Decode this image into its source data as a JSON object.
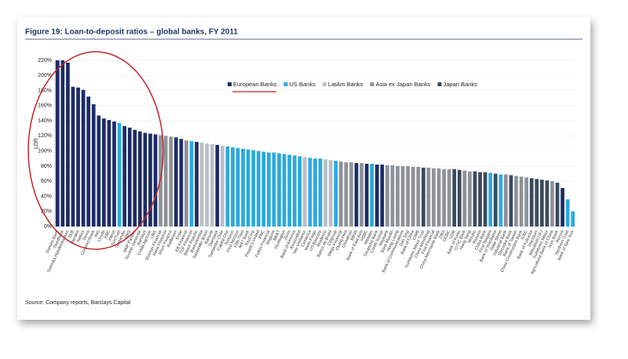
{
  "chart_data": {
    "type": "bar",
    "title": "Figure 19: Loan-to-deposit ratios – global banks, FY 2011",
    "source": "Source: Company reports, Barclays Capital",
    "y_label": "LDR",
    "groups": [
      {
        "name": "European Banks",
        "color": "#1d2c66"
      },
      {
        "name": "US Banks",
        "color": "#2aa9df"
      },
      {
        "name": "LatAm Banks",
        "color": "#b9bfc5"
      },
      {
        "name": "Asia ex Japan Banks",
        "color": "#8d9297"
      },
      {
        "name": "Japan Banks",
        "color": "#3b4a5c"
      }
    ],
    "categories": [
      "Danske Bank",
      "Swedbank",
      "Svenska Handelsbanken",
      "SEB",
      "Nordea",
      "Natixis",
      "Dexia",
      "Commerzbank",
      "ING",
      "Lloyds",
      "KBC",
      "Intesa",
      "SunTrust",
      "Santander",
      "RBS",
      "BNP Paribas",
      "Societe Generale",
      "Barclays",
      "Credit Agricole",
      "UBS",
      "Shinhan Financial",
      "Hana Financial",
      "Woori Finance",
      "Raiffeisen",
      "Erste",
      "KB Financial",
      "TCF Financial",
      "Banco Popular",
      "Bancolombia",
      "Santander Brasil",
      "Banorte",
      "Sberbank",
      "Santander Chile",
      "Capital One",
      "Synovus",
      "First Horizon",
      "Fifth Third",
      "M&T Bank",
      "KeyCorp",
      "People's United",
      "PNC",
      "Fulton Financial",
      "Regions",
      "BB&T",
      "Huntington",
      "Zions",
      "Bank of America",
      "Associated",
      "Itau Unibanco",
      "Comerica",
      "Wells Fargo",
      "US Bancorp",
      "Bradesco",
      "Banco do Brasil",
      "Citigroup",
      "Mega Financial",
      "Chang Hwa",
      "Chinatrust",
      "BBVA",
      "Bank of East Asia",
      "HSBC",
      "Webster",
      "Deutsche Bank",
      "Credit Suisse",
      "Maybank",
      "Bank Mandiri",
      "Hong Leong",
      "Bank of Communications",
      "Dah Sing",
      "Bank of China",
      "CIMB",
      "Sumitomo Mitsui Trust",
      "China Minsheng",
      "First Financial",
      "China Merchants Bank",
      "DBS",
      "OCBC",
      "UOB",
      "Bank of Kyoto",
      "CITIC Bank",
      "Hang Seng",
      "Mizuho",
      "Resona",
      "Chiba Bank",
      "First Niagara",
      "Bank of Yokohama",
      "State Street",
      "Industrial Bank",
      "Shizuoka Bank",
      "Bank of Taiwan",
      "China Construction Bank",
      "ICBC",
      "Bank of Fukuoka",
      "Hachijuni",
      "Mitsubishi UFJ",
      "Sumitomo Mitsui",
      "Agricultural Bank of China",
      "Joyo Bank",
      "Aozora",
      "Northern Trust",
      "Bank of New York"
    ],
    "values": [
      220,
      220,
      217,
      185,
      184,
      181,
      172,
      162,
      147,
      143,
      141,
      139,
      137,
      133,
      131,
      128,
      126,
      124,
      123,
      122,
      121,
      120,
      119,
      118,
      116,
      114,
      113,
      112,
      111,
      110,
      109,
      108,
      107,
      106,
      105,
      104,
      103,
      102,
      101,
      100,
      99,
      98,
      98,
      97,
      96,
      95,
      94,
      93,
      92,
      91,
      90,
      90,
      89,
      88,
      87,
      86,
      85,
      85,
      84,
      84,
      83,
      83,
      82,
      82,
      81,
      81,
      80,
      80,
      80,
      79,
      79,
      78,
      78,
      77,
      77,
      76,
      76,
      76,
      75,
      74,
      73,
      73,
      72,
      72,
      71,
      70,
      69,
      69,
      68,
      67,
      66,
      65,
      64,
      63,
      62,
      61,
      60,
      58,
      51,
      36,
      20
    ],
    "group_index": [
      0,
      0,
      0,
      0,
      0,
      0,
      0,
      0,
      0,
      0,
      0,
      0,
      1,
      0,
      0,
      0,
      0,
      0,
      0,
      0,
      3,
      3,
      3,
      0,
      0,
      3,
      1,
      0,
      2,
      2,
      2,
      0,
      2,
      1,
      1,
      1,
      1,
      1,
      1,
      1,
      1,
      1,
      1,
      1,
      1,
      1,
      1,
      1,
      2,
      1,
      1,
      1,
      2,
      2,
      1,
      3,
      3,
      3,
      0,
      3,
      0,
      1,
      0,
      0,
      3,
      3,
      3,
      3,
      3,
      3,
      3,
      4,
      3,
      3,
      3,
      3,
      3,
      4,
      4,
      3,
      3,
      4,
      4,
      4,
      1,
      4,
      1,
      3,
      4,
      3,
      3,
      3,
      4,
      4,
      4,
      4,
      3,
      4,
      0,
      1,
      1
    ],
    "ylim": [
      0,
      220
    ],
    "yticks": [
      {
        "value": 0,
        "label": "0%"
      },
      {
        "value": 20,
        "label": "20%"
      },
      {
        "value": 40,
        "label": "40%"
      },
      {
        "value": 60,
        "label": "60%"
      },
      {
        "value": 80,
        "label": "80%"
      },
      {
        "value": 100,
        "label": "100%"
      },
      {
        "value": 120,
        "label": "120%"
      },
      {
        "value": 140,
        "label": "140%"
      },
      {
        "value": 160,
        "label": "160%"
      },
      {
        "value": 180,
        "label": "180%"
      },
      {
        "value": 200,
        "label": "200%"
      },
      {
        "value": 220,
        "label": "220%"
      }
    ],
    "grid": true
  }
}
